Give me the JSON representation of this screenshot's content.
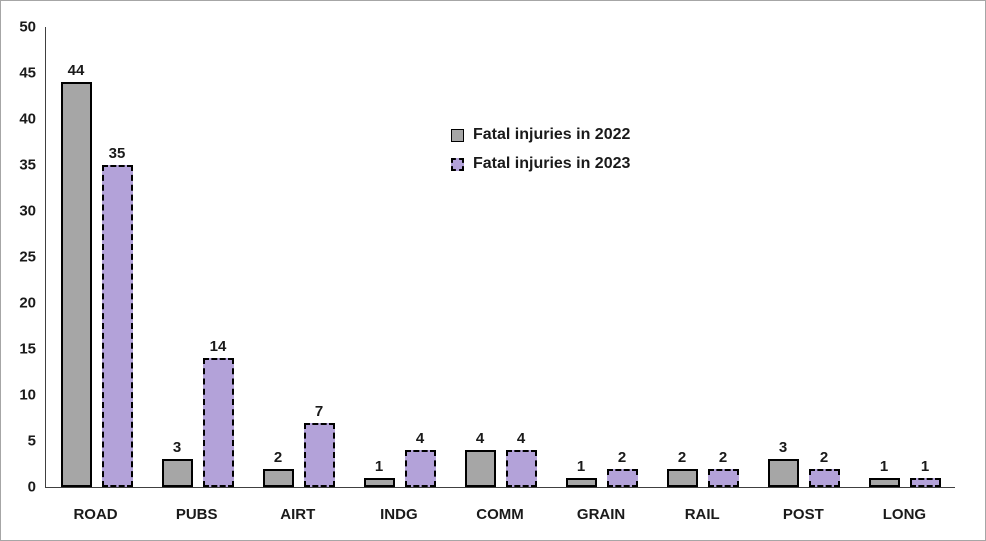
{
  "chart_data": {
    "type": "bar",
    "title": "",
    "categories": [
      "ROAD",
      "PUBS",
      "AIRT",
      "INDG",
      "COMM",
      "GRAIN",
      "RAIL",
      "POST",
      "LONG"
    ],
    "series": [
      {
        "name": "Fatal injuries in 2022",
        "values": [
          44,
          3,
          2,
          1,
          4,
          1,
          2,
          3,
          1
        ],
        "fill": "#a6a6a6",
        "border_style": "solid"
      },
      {
        "name": "Fatal injuries in 2023",
        "values": [
          35,
          14,
          7,
          4,
          4,
          2,
          2,
          2,
          1
        ],
        "fill": "#b3a2d9",
        "border_style": "dashed"
      }
    ],
    "xlabel": "",
    "ylabel": "",
    "ylim": [
      0,
      50
    ],
    "ytick_step": 5,
    "yticks": [
      0,
      5,
      10,
      15,
      20,
      25,
      30,
      35,
      40,
      45,
      50
    ],
    "grid": false,
    "legend_position": "inside-upper-middle",
    "data_labels": true
  },
  "colors": {
    "bar_2022_fill": "#a6a6a6",
    "bar_2023_fill": "#b3a2d9",
    "bar_border": "#000000",
    "axis_line": "#404040",
    "figure_border": "#a6a6a6",
    "text": "#1a1a1a",
    "background": "#ffffff"
  }
}
